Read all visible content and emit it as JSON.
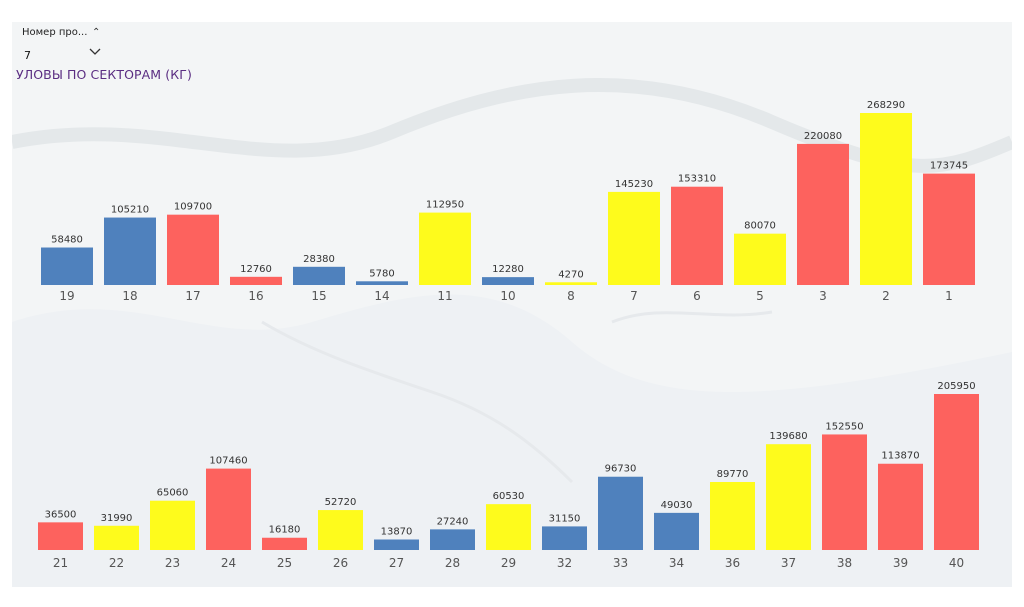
{
  "slicer": {
    "label": "Номер про...",
    "value": "7"
  },
  "title": "УЛОВЫ ПО СЕКТОРАМ (КГ)",
  "colors": {
    "blue": "#4f81bd",
    "red": "#fd625e",
    "yellow": "#fefb1c",
    "title": "#5a2d82"
  },
  "chart_data": [
    {
      "type": "bar",
      "title": "",
      "categories": [
        "19",
        "18",
        "17",
        "16",
        "15",
        "14",
        "11",
        "10",
        "8",
        "7",
        "6",
        "5",
        "3",
        "2",
        "1"
      ],
      "values": [
        58480,
        105210,
        109700,
        12760,
        28380,
        5780,
        112950,
        12280,
        4270,
        145230,
        153310,
        80070,
        220080,
        268290,
        173745
      ],
      "colors": [
        "blue",
        "blue",
        "red",
        "red",
        "blue",
        "blue",
        "yellow",
        "blue",
        "yellow",
        "yellow",
        "red",
        "yellow",
        "red",
        "yellow",
        "red"
      ],
      "ylim": [
        0,
        268290
      ]
    },
    {
      "type": "bar",
      "title": "",
      "categories": [
        "21",
        "22",
        "23",
        "24",
        "25",
        "26",
        "27",
        "28",
        "29",
        "32",
        "33",
        "34",
        "36",
        "37",
        "38",
        "39",
        "40"
      ],
      "values": [
        36500,
        31990,
        65060,
        107460,
        16180,
        52720,
        13870,
        27240,
        60530,
        31150,
        96730,
        49030,
        89770,
        139680,
        152550,
        113870,
        205950
      ],
      "colors": [
        "red",
        "yellow",
        "yellow",
        "red",
        "red",
        "yellow",
        "blue",
        "blue",
        "yellow",
        "blue",
        "blue",
        "blue",
        "yellow",
        "yellow",
        "red",
        "red",
        "red"
      ],
      "ylim": [
        0,
        205950
      ]
    }
  ]
}
